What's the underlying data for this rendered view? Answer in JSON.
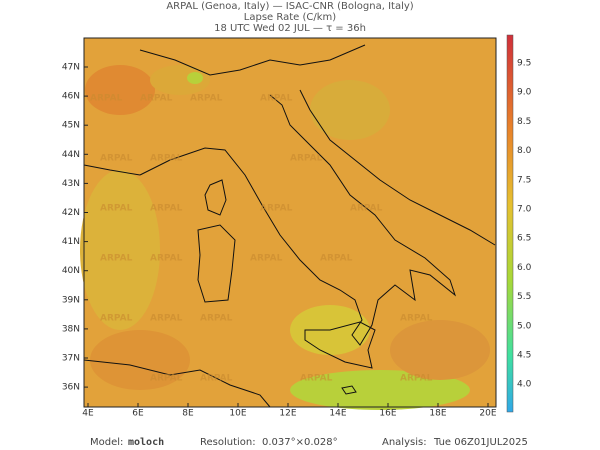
{
  "header": {
    "line1": "ARPAL (Genoa, Italy)  —  ISAC-CNR (Bologna, Italy)",
    "line2": "Lapse Rate (C/km)",
    "line3": "18 UTC Wed 02 JUL  —  τ = 36h"
  },
  "map": {
    "watermark": "ARPAL",
    "lat_labels": [
      "47N",
      "46N",
      "45N",
      "44N",
      "43N",
      "42N",
      "41N",
      "40N",
      "39N",
      "38N",
      "37N",
      "36N"
    ],
    "lon_labels": [
      "4E",
      "6E",
      "8E",
      "10E",
      "12E",
      "14E",
      "16E",
      "18E",
      "20E"
    ]
  },
  "colorbar": {
    "labels": [
      "9.5",
      "9.0",
      "8.5",
      "8.0",
      "7.5",
      "7.0",
      "6.5",
      "6.0",
      "5.5",
      "5.0",
      "4.5",
      "4.0"
    ]
  },
  "footer": {
    "model_label": "Model:",
    "model": "moloch",
    "resolution_label": "Resolution:",
    "resolution": "0.037°×0.028°",
    "analysis_label": "Analysis:",
    "analysis": "Tue 06Z01JUL2025"
  }
}
